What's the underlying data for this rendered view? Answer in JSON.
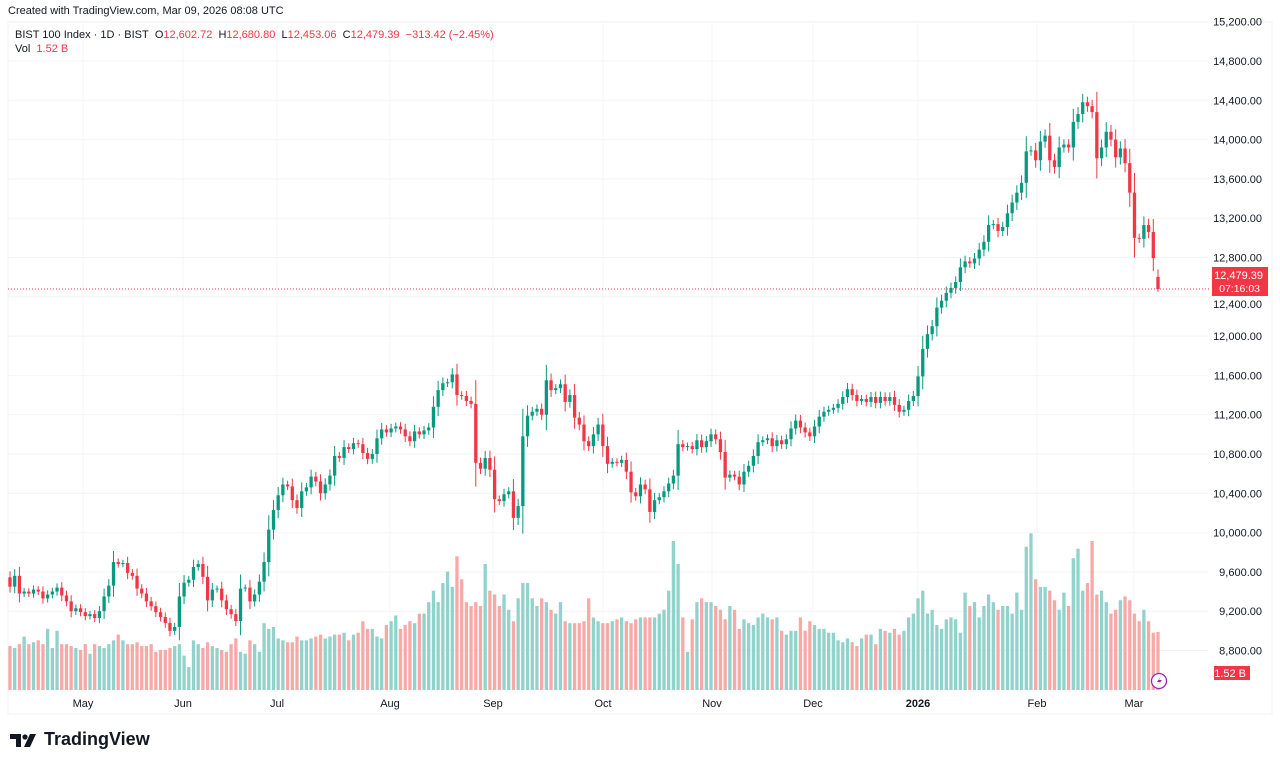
{
  "credit": "Created with TradingView.com, Mar 09, 2026 08:08 UTC",
  "legend": {
    "symbol": "BIST 100 Index · 1D · BIST",
    "o_label": "O",
    "o": "12,602.72",
    "h_label": "H",
    "h": "12,680.80",
    "l_label": "L",
    "l": "12,453.06",
    "c_label": "C",
    "c": "12,479.39",
    "change": "−313.42 (−2.45%)",
    "vol_label": "Vol",
    "vol": "1.52 B"
  },
  "last_price_label": "12,479.39",
  "countdown": "07:16:03",
  "volume_label": "1.52 B",
  "footer_brand": "TradingView",
  "colors": {
    "up": "#089981",
    "down": "#f23645",
    "vol_up": "#92d2cc",
    "vol_down": "#f7a9a7",
    "last_price": "#f23645",
    "lightning": "#9c27b0"
  },
  "icons": {
    "lightning": "lightning-icon",
    "logo": "tradingview-logo"
  },
  "chart_data": {
    "type": "candlestick",
    "symbol": "BIST 100 Index",
    "interval": "1D",
    "y_axis": {
      "ticks": [
        "15,200.00",
        "14,800.00",
        "14,400.00",
        "14,000.00",
        "13,600.00",
        "13,200.00",
        "12,800.00",
        "12,400.00",
        "12,000.00",
        "11,600.00",
        "11,200.00",
        "10,800.00",
        "10,400.00",
        "10,000.00",
        "9,600.00",
        "9,200.00",
        "8,800.00"
      ],
      "tick_values": [
        15200,
        14800,
        14400,
        14000,
        13600,
        13200,
        12800,
        12400,
        12000,
        11600,
        11200,
        10800,
        10400,
        10000,
        9600,
        9200,
        8800
      ],
      "position": "right"
    },
    "x_axis": {
      "ticks": [
        "May",
        "Jun",
        "Jul",
        "Aug",
        "Sep",
        "Oct",
        "Nov",
        "Dec",
        "2026",
        "Feb",
        "Mar"
      ]
    },
    "grid": true,
    "last_candle": {
      "open": 12602.72,
      "high": 12680.8,
      "low": 12453.06,
      "close": 12479.39,
      "volume_b": 1.52
    },
    "close": [
      9450,
      9560,
      9380,
      9400,
      9380,
      9420,
      9400,
      9330,
      9370,
      9400,
      9440,
      9360,
      9300,
      9200,
      9230,
      9190,
      9150,
      9170,
      9130,
      9200,
      9350,
      9460,
      9700,
      9680,
      9690,
      9590,
      9560,
      9430,
      9380,
      9300,
      9250,
      9190,
      9140,
      9080,
      9000,
      9040,
      9350,
      9490,
      9520,
      9650,
      9680,
      9550,
      9310,
      9420,
      9430,
      9310,
      9220,
      9170,
      9100,
      9430,
      9440,
      9300,
      9370,
      9500,
      9700,
      10030,
      10230,
      10380,
      10490,
      10470,
      10330,
      10250,
      10420,
      10460,
      10570,
      10520,
      10400,
      10490,
      10580,
      10780,
      10760,
      10870,
      10850,
      10910,
      10900,
      10810,
      10750,
      10800,
      10960,
      11050,
      11020,
      11060,
      11080,
      11050,
      10980,
      10930,
      11030,
      11000,
      11040,
      11070,
      11280,
      11450,
      11520,
      11530,
      11610,
      11400,
      11390,
      11340,
      11310,
      10710,
      10650,
      10760,
      10640,
      10340,
      10320,
      10390,
      10420,
      10150,
      10270,
      10980,
      11190,
      11230,
      11260,
      11200,
      11550,
      11450,
      11470,
      11510,
      11330,
      11400,
      11170,
      11100,
      10930,
      10880,
      11000,
      11100,
      10880,
      10700,
      10720,
      10710,
      10740,
      10620,
      10410,
      10370,
      10490,
      10440,
      10210,
      10330,
      10360,
      10420,
      10500,
      10580,
      10900,
      10870,
      10880,
      10850,
      10940,
      10870,
      10930,
      11000,
      10950,
      10820,
      10560,
      10590,
      10570,
      10490,
      10620,
      10680,
      10780,
      10920,
      10940,
      10960,
      10880,
      10940,
      10900,
      10950,
      11060,
      11140,
      11070,
      11020,
      10980,
      11080,
      11180,
      11230,
      11250,
      11270,
      11310,
      11380,
      11460,
      11400,
      11340,
      11360,
      11330,
      11380,
      11320,
      11380,
      11340,
      11380,
      11300,
      11230,
      11250,
      11340,
      11390,
      11590,
      11870,
      12020,
      12100,
      12290,
      12360,
      12440,
      12490,
      12550,
      12700,
      12760,
      12740,
      12790,
      12880,
      12960,
      13130,
      13140,
      13070,
      13110,
      13250,
      13360,
      13460,
      13560,
      13880,
      13890,
      13790,
      13980,
      14040,
      13790,
      13720,
      13920,
      13950,
      13920,
      14180,
      14260,
      14380,
      14340,
      14280,
      13810,
      13920,
      14080,
      14000,
      13820,
      13910,
      13760,
      13460,
      13000,
      12990,
      13130,
      13060,
      12792.81,
      12479.39
    ],
    "volume_b": [
      1.15,
      1.1,
      1.2,
      1.4,
      1.2,
      1.25,
      1.3,
      1.2,
      1.6,
      1.1,
      1.55,
      1.2,
      1.2,
      1.15,
      1.1,
      1.05,
      1.2,
      0.95,
      1.2,
      1.15,
      1.1,
      1.2,
      1.3,
      1.45,
      1.3,
      1.2,
      1.2,
      1.25,
      1.15,
      1.15,
      1.2,
      1.0,
      1.05,
      1.05,
      1.1,
      1.15,
      1.2,
      0.9,
      0.6,
      1.3,
      1.2,
      1.1,
      1.25,
      1.15,
      1.1,
      1.05,
      1.0,
      1.2,
      1.35,
      1.0,
      0.95,
      1.3,
      1.2,
      1.0,
      1.75,
      1.6,
      1.65,
      1.35,
      1.3,
      1.25,
      1.25,
      1.4,
      1.3,
      1.3,
      1.35,
      1.4,
      1.45,
      1.35,
      1.4,
      1.45,
      1.45,
      1.5,
      1.3,
      1.45,
      1.5,
      1.8,
      1.6,
      1.6,
      1.4,
      1.35,
      1.7,
      1.8,
      1.95,
      1.6,
      1.7,
      1.8,
      1.75,
      2.0,
      2.0,
      2.3,
      2.6,
      2.3,
      2.8,
      3.1,
      2.7,
      3.5,
      2.9,
      2.3,
      2.2,
      2.3,
      2.2,
      3.3,
      2.6,
      2.5,
      2.2,
      2.5,
      2.1,
      1.8,
      2.4,
      2.8,
      2.8,
      2.4,
      2.2,
      2.4,
      2.3,
      2.1,
      2.0,
      2.3,
      1.8,
      1.75,
      1.75,
      1.75,
      1.8,
      2.4,
      1.9,
      1.8,
      1.75,
      1.75,
      1.8,
      1.85,
      1.9,
      1.8,
      1.75,
      1.85,
      1.9,
      1.9,
      1.9,
      1.9,
      2.0,
      2.1,
      2.6,
      3.9,
      3.3,
      1.9,
      1.0,
      1.85,
      2.3,
      2.4,
      2.3,
      2.3,
      2.2,
      2.1,
      1.85,
      2.2,
      2.1,
      1.6,
      1.85,
      1.75,
      1.7,
      1.9,
      2.0,
      1.9,
      1.85,
      1.9,
      1.55,
      1.45,
      1.55,
      1.55,
      1.9,
      1.55,
      1.8,
      1.7,
      1.6,
      1.6,
      1.5,
      1.5,
      1.3,
      1.25,
      1.35,
      1.25,
      1.15,
      1.35,
      1.45,
      1.45,
      1.2,
      1.6,
      1.55,
      1.5,
      1.6,
      1.45,
      1.55,
      1.9,
      2.0,
      2.4,
      2.6,
      2.0,
      2.1,
      1.7,
      1.6,
      1.85,
      1.9,
      1.85,
      1.5,
      2.55,
      2.2,
      2.3,
      1.9,
      2.2,
      2.5,
      2.3,
      2.1,
      2.2,
      2.2,
      2.0,
      2.55,
      2.1,
      3.75,
      4.1,
      2.9,
      2.7,
      2.7,
      2.6,
      2.35,
      2.1,
      2.55,
      2.2,
      3.45,
      3.7,
      2.6,
      2.8,
      3.9,
      2.5,
      2.6,
      2.3,
      2.0,
      2.1,
      2.35,
      2.45,
      2.35,
      2.0,
      1.8,
      2.1,
      1.8,
      1.5,
      1.52
    ]
  }
}
